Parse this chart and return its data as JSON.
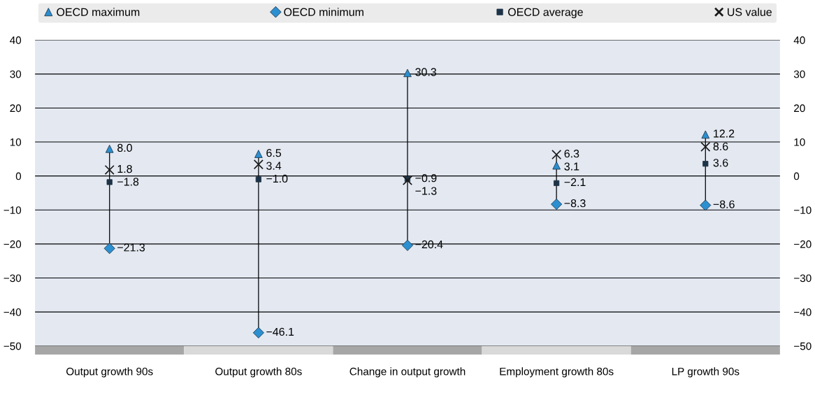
{
  "chart_data": {
    "type": "scatter",
    "categories": [
      "Output growth 90s",
      "Output growth 80s",
      "Change in output growth",
      "Employment growth 80s",
      "LP growth 90s"
    ],
    "series": [
      {
        "name": "OECD maximum",
        "color": "#2b8fd0",
        "marker": "triangle",
        "values": [
          8.0,
          6.5,
          30.3,
          3.1,
          12.2
        ],
        "value_labels": [
          "8.0",
          "6.5",
          "30.3",
          "3.1",
          "12.2"
        ]
      },
      {
        "name": "OECD minimum",
        "color": "#2b8fd0",
        "marker": "diamond",
        "values": [
          -21.3,
          -46.1,
          -20.4,
          -8.3,
          -8.6
        ],
        "value_labels": [
          "−21.3",
          "−46.1",
          "−20.4",
          "−8.3",
          "−8.6"
        ]
      },
      {
        "name": "OECD average",
        "color": "#1d3347",
        "marker": "square",
        "values": [
          -1.8,
          -1.0,
          -0.9,
          -2.1,
          3.6
        ],
        "value_labels": [
          "−1.8",
          "−1.0",
          "−0.9",
          "−2.1",
          "3.6"
        ]
      },
      {
        "name": "US value",
        "color": "#1a1a1a",
        "marker": "cross",
        "values": [
          1.8,
          3.4,
          -1.3,
          6.3,
          8.6
        ],
        "value_labels": [
          "1.8",
          "3.4",
          "−1.3",
          "6.3",
          "8.6"
        ]
      }
    ],
    "ylim": [
      -50,
      40
    ],
    "yticks": [
      {
        "value": -50,
        "label": "−50"
      },
      {
        "value": -40,
        "label": "−40"
      },
      {
        "value": -30,
        "label": "−30"
      },
      {
        "value": -20,
        "label": "−20"
      },
      {
        "value": -10,
        "label": "−10"
      },
      0,
      10,
      20,
      30,
      40
    ],
    "y2lim": [
      -50,
      40
    ],
    "y2ticks": [
      {
        "value": -50,
        "label": "−50"
      },
      {
        "value": -40,
        "label": "−40"
      },
      {
        "value": -30,
        "label": "−30"
      },
      {
        "value": -20,
        "label": "−20"
      },
      {
        "value": -10,
        "label": "−10"
      },
      0,
      10,
      20,
      30,
      40
    ],
    "grid": "y",
    "legend": "top"
  }
}
